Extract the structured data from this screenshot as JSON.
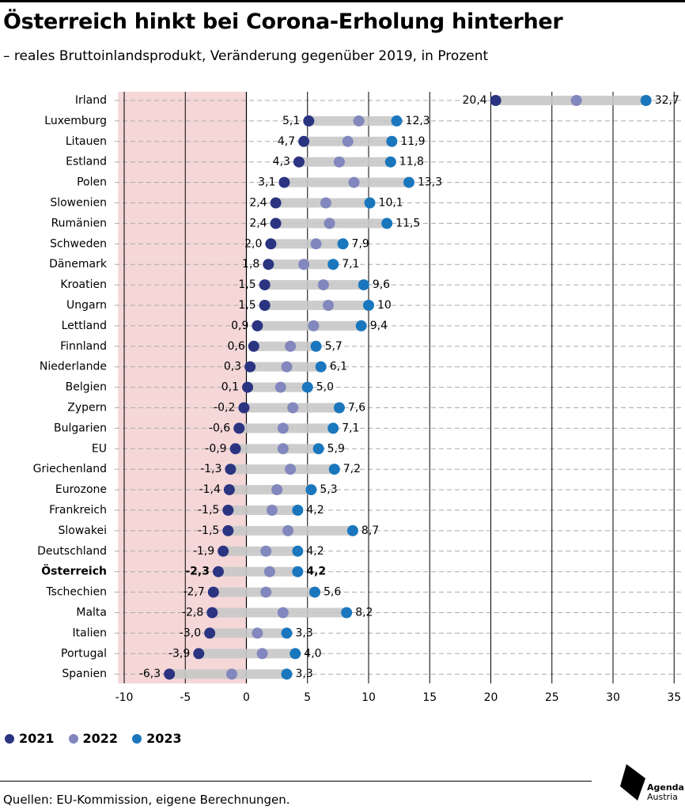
{
  "title": "Österreich hinkt bei Corona-Erholung hinterher",
  "subtitle": "– reales Bruttoinlandsprodukt, Veränderung gegenüber 2019, in Prozent",
  "source": "Quellen: EU-Kommission, eigene Berechnungen.",
  "logo": {
    "line1": "Agenda",
    "line2": "Austria"
  },
  "colors": {
    "y2021": "#2b3481",
    "y2022": "#8288bd",
    "y2023": "#1a77bd",
    "bar": "#c8c8c8",
    "shade": "#f5d7d8",
    "grid": "#000000",
    "dash": "#aaaaaa"
  },
  "chart_data": {
    "type": "dot-range",
    "xlim": [
      -10,
      35
    ],
    "xticks": [
      -10,
      -5,
      0,
      5,
      10,
      15,
      20,
      25,
      30,
      35
    ],
    "xticklabels": [
      "-10",
      "-5",
      "0",
      "5",
      "10",
      "15",
      "20",
      "25",
      "30",
      "35"
    ],
    "shaded_region": [
      -10.5,
      0
    ],
    "legend": [
      "2021",
      "2022",
      "2023"
    ],
    "highlight": "Österreich",
    "rows": [
      {
        "country": "Irland",
        "v2021": 20.4,
        "v2022": 27.0,
        "v2023": 32.7,
        "l2021": "20,4",
        "l2023": "32,7"
      },
      {
        "country": "Luxemburg",
        "v2021": 5.1,
        "v2022": 9.2,
        "v2023": 12.3,
        "l2021": "5,1",
        "l2023": "12,3"
      },
      {
        "country": "Litauen",
        "v2021": 4.7,
        "v2022": 8.3,
        "v2023": 11.9,
        "l2021": "4,7",
        "l2023": "11,9"
      },
      {
        "country": "Estland",
        "v2021": 4.3,
        "v2022": 7.6,
        "v2023": 11.8,
        "l2021": "4,3",
        "l2023": "11,8"
      },
      {
        "country": "Polen",
        "v2021": 3.1,
        "v2022": 8.8,
        "v2023": 13.3,
        "l2021": "3,1",
        "l2023": "13,3"
      },
      {
        "country": "Slowenien",
        "v2021": 2.4,
        "v2022": 6.5,
        "v2023": 10.1,
        "l2021": "2,4",
        "l2023": "10,1"
      },
      {
        "country": "Rumänien",
        "v2021": 2.4,
        "v2022": 6.8,
        "v2023": 11.5,
        "l2021": "2,4",
        "l2023": "11,5"
      },
      {
        "country": "Schweden",
        "v2021": 2.0,
        "v2022": 5.7,
        "v2023": 7.9,
        "l2021": "2,0",
        "l2023": "7,9"
      },
      {
        "country": "Dänemark",
        "v2021": 1.8,
        "v2022": 4.7,
        "v2023": 7.1,
        "l2021": "1,8",
        "l2023": "7,1"
      },
      {
        "country": "Kroatien",
        "v2021": 1.5,
        "v2022": 6.3,
        "v2023": 9.6,
        "l2021": "1,5",
        "l2023": "9,6"
      },
      {
        "country": "Ungarn",
        "v2021": 1.5,
        "v2022": 6.7,
        "v2023": 10.0,
        "l2021": "1,5",
        "l2023": "10"
      },
      {
        "country": "Lettland",
        "v2021": 0.9,
        "v2022": 5.5,
        "v2023": 9.4,
        "l2021": "0,9",
        "l2023": "9,4"
      },
      {
        "country": "Finnland",
        "v2021": 0.6,
        "v2022": 3.6,
        "v2023": 5.7,
        "l2021": "0,6",
        "l2023": "5,7"
      },
      {
        "country": "Niederlande",
        "v2021": 0.3,
        "v2022": 3.3,
        "v2023": 6.1,
        "l2021": "0,3",
        "l2023": "6,1"
      },
      {
        "country": "Belgien",
        "v2021": 0.1,
        "v2022": 2.8,
        "v2023": 5.0,
        "l2021": "0,1",
        "l2023": "5,0"
      },
      {
        "country": "Zypern",
        "v2021": -0.2,
        "v2022": 3.8,
        "v2023": 7.6,
        "l2021": "-0,2",
        "l2023": "7,6"
      },
      {
        "country": "Bulgarien",
        "v2021": -0.6,
        "v2022": 3.0,
        "v2023": 7.1,
        "l2021": "-0,6",
        "l2023": "7,1"
      },
      {
        "country": "EU",
        "v2021": -0.9,
        "v2022": 3.0,
        "v2023": 5.9,
        "l2021": "-0,9",
        "l2023": "5,9"
      },
      {
        "country": "Griechenland",
        "v2021": -1.3,
        "v2022": 3.6,
        "v2023": 7.2,
        "l2021": "-1,3",
        "l2023": "7,2"
      },
      {
        "country": "Eurozone",
        "v2021": -1.4,
        "v2022": 2.5,
        "v2023": 5.3,
        "l2021": "-1,4",
        "l2023": "5,3"
      },
      {
        "country": "Frankreich",
        "v2021": -1.5,
        "v2022": 2.1,
        "v2023": 4.2,
        "l2021": "-1,5",
        "l2023": "4,2"
      },
      {
        "country": "Slowakei",
        "v2021": -1.5,
        "v2022": 3.4,
        "v2023": 8.7,
        "l2021": "-1,5",
        "l2023": "8,7"
      },
      {
        "country": "Deutschland",
        "v2021": -1.9,
        "v2022": 1.6,
        "v2023": 4.2,
        "l2021": "-1,9",
        "l2023": "4,2"
      },
      {
        "country": "Österreich",
        "v2021": -2.3,
        "v2022": 1.9,
        "v2023": 4.2,
        "l2021": "-2,3",
        "l2023": "4,2"
      },
      {
        "country": "Tschechien",
        "v2021": -2.7,
        "v2022": 1.6,
        "v2023": 5.6,
        "l2021": "-2,7",
        "l2023": "5,6"
      },
      {
        "country": "Malta",
        "v2021": -2.8,
        "v2022": 3.0,
        "v2023": 8.2,
        "l2021": "-2,8",
        "l2023": "8,2"
      },
      {
        "country": "Italien",
        "v2021": -3.0,
        "v2022": 0.9,
        "v2023": 3.3,
        "l2021": "-3,0",
        "l2023": "3,3"
      },
      {
        "country": "Portugal",
        "v2021": -3.9,
        "v2022": 1.3,
        "v2023": 4.0,
        "l2021": "-3,9",
        "l2023": "4,0"
      },
      {
        "country": "Spanien",
        "v2021": -6.3,
        "v2022": -1.2,
        "v2023": 3.3,
        "l2021": "-6,3",
        "l2023": "3,3"
      }
    ]
  }
}
